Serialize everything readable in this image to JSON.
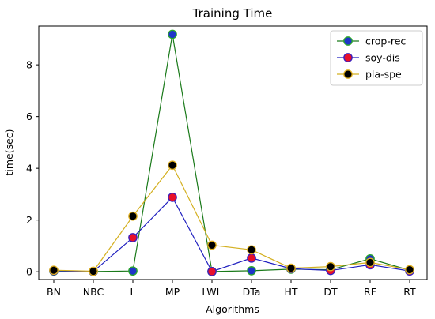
{
  "chart_data": {
    "type": "line",
    "title": "Training Time",
    "xlabel": "Algorithms",
    "ylabel": "time(sec)",
    "categories": [
      "BN",
      "NBC",
      "L",
      "MP",
      "LWL",
      "DTa",
      "HT",
      "DT",
      "RF",
      "RT"
    ],
    "ylim": [
      -0.3,
      9.5
    ],
    "yticks": [
      0,
      2,
      4,
      6,
      8
    ],
    "grid": false,
    "legend_position": "top-right",
    "series": [
      {
        "name": "crop-rec",
        "values": [
          0.03,
          0.01,
          0.03,
          9.18,
          0.01,
          0.04,
          0.1,
          0.08,
          0.5,
          0.06
        ],
        "line_color": "#1a7a1a",
        "marker_fill": "#1f35c8",
        "marker_edge": "#2aa82a"
      },
      {
        "name": "soy-dis",
        "values": [
          0.04,
          0.01,
          1.32,
          2.88,
          0.01,
          0.53,
          0.12,
          0.05,
          0.27,
          0.03
        ],
        "line_color": "#1f1fbf",
        "marker_fill": "#e8102a",
        "marker_edge": "#3a1fbf"
      },
      {
        "name": "pla-spe",
        "values": [
          0.06,
          0.02,
          2.15,
          4.12,
          1.03,
          0.85,
          0.14,
          0.2,
          0.36,
          0.08
        ],
        "line_color": "#d4b020",
        "marker_fill": "#000000",
        "marker_edge": "#e0b020"
      }
    ]
  }
}
